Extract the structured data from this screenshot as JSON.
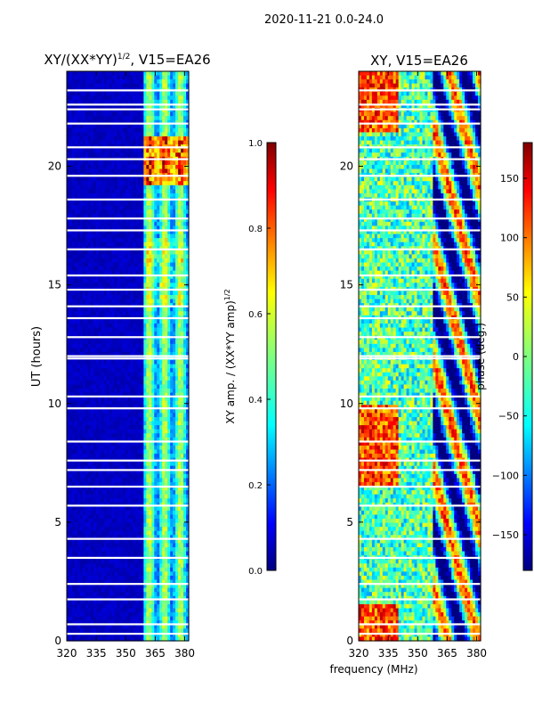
{
  "suptitle": "2020-11-21 0.0-24.0",
  "xlabel": "frequency (MHz)",
  "chart_data": [
    {
      "type": "heatmap",
      "title_main": "XY/(XX*YY)",
      "title_sup": "1/2",
      "title_tail": ", V15=EA26",
      "xlabel": "",
      "ylabel": "UT (hours)",
      "xlim": [
        320,
        382
      ],
      "ylim": [
        0,
        24
      ],
      "xticks": [
        320,
        335,
        350,
        365,
        380
      ],
      "yticks": [
        0,
        5,
        10,
        15,
        20
      ],
      "colorbar": {
        "label": "XY amp. / (XX*YY amp)",
        "label_sup": "1/2",
        "range": [
          0.0,
          1.0
        ],
        "ticks": [
          "0.0",
          "0.2",
          "0.4",
          "0.6",
          "0.8",
          "1.0"
        ],
        "colormap": "jet"
      },
      "gaps_hours": [
        0.3,
        0.7,
        1.75,
        2.4,
        3.5,
        4.3,
        5.7,
        6.5,
        7.2,
        7.6,
        8.4,
        9.8,
        10.3,
        11.9,
        12.0,
        12.8,
        13.6,
        14.1,
        14.8,
        15.4,
        16.5,
        17.3,
        17.8,
        18.6,
        19.6,
        20.3,
        20.8,
        21.8,
        22.4,
        22.6,
        23.2
      ],
      "note": "Low amplitude (~0.0-0.1) below ~360 MHz; enhanced striped emission (~0.3-0.6) between ~360 and 382 MHz, peaking ~0.9-1.0 near 19.5-21 UT."
    },
    {
      "type": "heatmap",
      "title": "XY, V15=EA26",
      "xlabel": "",
      "ylabel": "",
      "xlim": [
        320,
        382
      ],
      "ylim": [
        0,
        24
      ],
      "xticks": [
        320,
        335,
        350,
        365,
        380
      ],
      "yticks": [
        0,
        5,
        10,
        15,
        20
      ],
      "colorbar": {
        "label": "phase (deg.)",
        "range": [
          -180,
          180
        ],
        "ticks": [
          "150",
          "100",
          "50",
          "0",
          "−50",
          "−100",
          "−150"
        ],
        "tick_values": [
          150,
          100,
          50,
          0,
          -50,
          -100,
          -150
        ],
        "colormap": "jet"
      },
      "note": "Noisy phase map with values spanning -180 to 180 degrees; structured features between ~355 and 382 MHz."
    }
  ],
  "colors": {
    "jet": [
      "#00007f",
      "#0000ff",
      "#007fff",
      "#00ffff",
      "#7fff7f",
      "#ffff00",
      "#ff7f00",
      "#ff0000",
      "#7f0000"
    ]
  }
}
